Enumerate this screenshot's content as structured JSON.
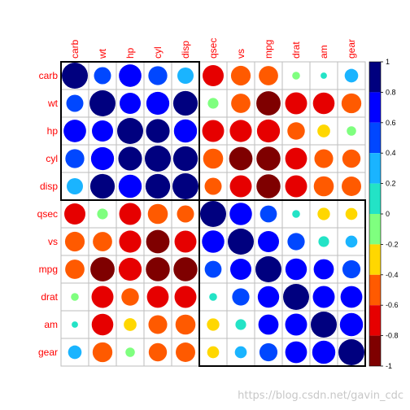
{
  "chart_data": {
    "type": "heatmap",
    "subtype": "correlation-circle-matrix",
    "title": "",
    "variables": [
      "carb",
      "wt",
      "hp",
      "cyl",
      "disp",
      "qsec",
      "vs",
      "mpg",
      "drat",
      "am",
      "gear"
    ],
    "matrix": [
      [
        1.0,
        0.43,
        0.75,
        0.53,
        0.39,
        -0.66,
        -0.57,
        -0.55,
        -0.09,
        0.06,
        0.27
      ],
      [
        0.43,
        1.0,
        0.66,
        0.78,
        0.89,
        -0.17,
        -0.55,
        -0.87,
        -0.71,
        -0.69,
        -0.58
      ],
      [
        0.75,
        0.66,
        1.0,
        0.83,
        0.79,
        -0.71,
        -0.72,
        -0.78,
        -0.45,
        -0.24,
        -0.13
      ],
      [
        0.53,
        0.78,
        0.83,
        1.0,
        0.9,
        -0.59,
        -0.81,
        -0.85,
        -0.7,
        -0.52,
        -0.49
      ],
      [
        0.39,
        0.89,
        0.79,
        0.9,
        1.0,
        -0.43,
        -0.71,
        -0.85,
        -0.71,
        -0.59,
        -0.56
      ],
      [
        -0.66,
        -0.17,
        -0.71,
        -0.59,
        -0.43,
        1.0,
        0.74,
        0.42,
        0.09,
        -0.23,
        -0.21
      ],
      [
        -0.57,
        -0.55,
        -0.72,
        -0.81,
        -0.71,
        0.74,
        1.0,
        0.66,
        0.44,
        0.17,
        0.21
      ],
      [
        -0.55,
        -0.87,
        -0.78,
        -0.85,
        -0.85,
        0.42,
        0.66,
        1.0,
        0.68,
        0.6,
        0.48
      ],
      [
        -0.09,
        -0.71,
        -0.45,
        -0.7,
        -0.71,
        0.09,
        0.44,
        0.68,
        1.0,
        0.71,
        0.7
      ],
      [
        0.06,
        -0.69,
        -0.24,
        -0.52,
        -0.59,
        -0.23,
        0.17,
        0.6,
        0.71,
        1.0,
        0.79
      ],
      [
        0.27,
        -0.58,
        -0.13,
        -0.49,
        -0.56,
        -0.21,
        0.21,
        0.48,
        0.7,
        0.79,
        1.0
      ]
    ],
    "clusters": [
      {
        "variables": [
          "carb",
          "wt",
          "hp",
          "cyl",
          "disp"
        ]
      },
      {
        "variables": [
          "qsec",
          "vs",
          "mpg",
          "drat",
          "am",
          "gear"
        ]
      }
    ],
    "colorbar": {
      "ticks": [
        "1",
        "0.8",
        "0.6",
        "0.4",
        "0.2",
        "0",
        "-0.2",
        "-0.4",
        "-0.6",
        "-0.8",
        "-1"
      ],
      "range": [
        -1,
        1
      ],
      "bins": [
        {
          "from": 0.8,
          "to": 1.0,
          "color": "#00007f"
        },
        {
          "from": 0.6,
          "to": 0.8,
          "color": "#0000ff"
        },
        {
          "from": 0.4,
          "to": 0.6,
          "color": "#0047ff"
        },
        {
          "from": 0.2,
          "to": 0.4,
          "color": "#1ab4ff"
        },
        {
          "from": 0.0,
          "to": 0.2,
          "color": "#23e3c6"
        },
        {
          "from": -0.2,
          "to": 0.0,
          "color": "#7fff7f"
        },
        {
          "from": -0.4,
          "to": -0.2,
          "color": "#ffd700"
        },
        {
          "from": -0.6,
          "to": -0.4,
          "color": "#ff5a00"
        },
        {
          "from": -0.8,
          "to": -0.6,
          "color": "#e60000"
        },
        {
          "from": -1.0,
          "to": -0.8,
          "color": "#7f0000"
        }
      ]
    },
    "grid": true,
    "legend_position": "right"
  },
  "watermark": "https://blog.csdn.net/gavin_cdc"
}
